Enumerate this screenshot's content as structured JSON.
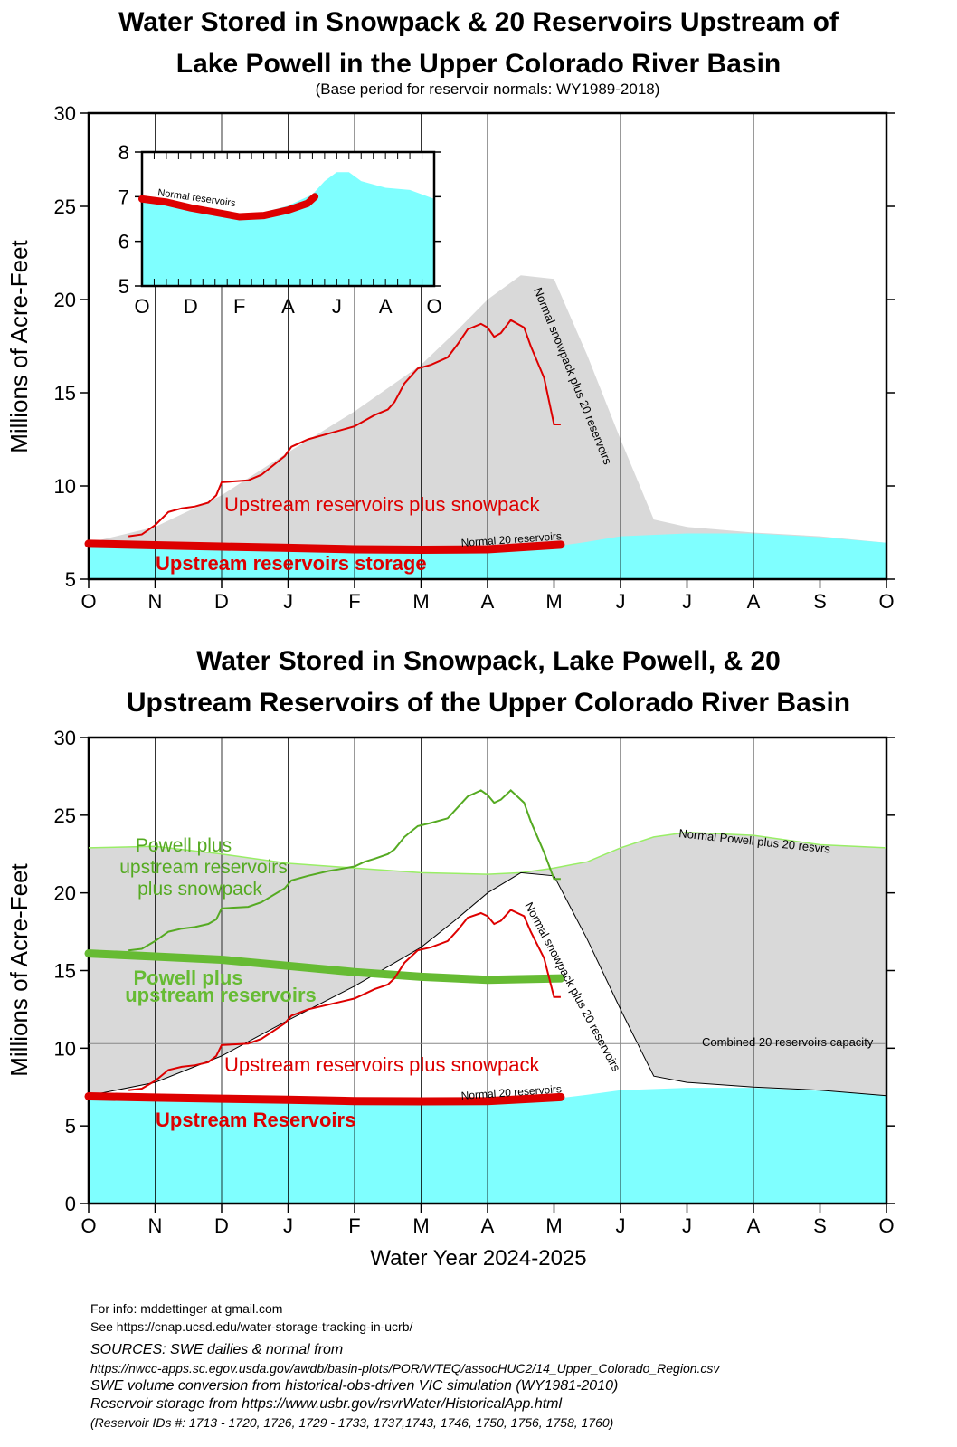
{
  "chart_data": [
    {
      "type": "area",
      "title": "Water Stored in Snowpack & 20 Reservoirs Upstream of Lake Powell in the Upper Colorado River Basin",
      "subtitle": "(Base period for reservoir normals: WY1989-2018)",
      "ylabel": "Millions of Acre-Feet",
      "xlabel": "",
      "ylim": [
        5,
        30
      ],
      "yticks": [
        5,
        10,
        15,
        20,
        25,
        30
      ],
      "xlim": [
        0,
        12
      ],
      "xticks": [
        "O",
        "N",
        "D",
        "J",
        "F",
        "M",
        "A",
        "M",
        "J",
        "J",
        "A",
        "S",
        "O"
      ],
      "grid": "vertical lines at month ticks",
      "series": [
        {
          "name": "Normal snowpack plus 20 reservoirs",
          "style": "gray fill",
          "color": "#d9d9d9",
          "x": [
            0,
            1,
            2,
            3,
            4,
            5,
            5.5,
            6,
            6.5,
            7,
            7.5,
            8,
            8.5,
            9,
            10,
            11,
            12
          ],
          "values": [
            6.95,
            7.8,
            9.5,
            11.8,
            14.0,
            16.5,
            18.2,
            20.0,
            21.3,
            21.1,
            17.0,
            12.5,
            8.2,
            7.8,
            7.5,
            7.3,
            6.95
          ]
        },
        {
          "name": "Normal 20 reservoirs",
          "style": "cyan fill",
          "color": "#7fffff",
          "x": [
            0,
            1,
            2,
            3,
            4,
            5,
            6,
            7,
            7.5,
            8,
            9,
            10,
            11,
            12
          ],
          "values": [
            6.9,
            6.85,
            6.75,
            6.62,
            6.55,
            6.5,
            6.55,
            6.75,
            7.0,
            7.3,
            7.45,
            7.45,
            7.25,
            6.95
          ]
        },
        {
          "name": "Upstream reservoirs plus snowpack",
          "style": "red line",
          "color": "#dd0000",
          "x": [
            0.6,
            0.8,
            1.0,
            1.2,
            1.4,
            1.6,
            1.8,
            1.92,
            2.0,
            2.4,
            2.6,
            2.95,
            3.05,
            3.3,
            3.6,
            4.0,
            4.15,
            4.3,
            4.5,
            4.6,
            4.75,
            4.95,
            5.15,
            5.4,
            5.55,
            5.7,
            5.9,
            6.0,
            6.1,
            6.2,
            6.35,
            6.55,
            6.65,
            6.85,
            7.0,
            7.1
          ],
          "values": [
            7.3,
            7.4,
            7.9,
            8.6,
            8.8,
            8.9,
            9.1,
            9.5,
            10.2,
            10.3,
            10.6,
            11.6,
            12.1,
            12.5,
            12.8,
            13.2,
            13.5,
            13.8,
            14.1,
            14.5,
            15.5,
            16.3,
            16.5,
            16.9,
            17.6,
            18.4,
            18.7,
            18.5,
            18.0,
            18.2,
            18.9,
            18.5,
            17.5,
            15.8,
            13.3,
            13.3
          ]
        },
        {
          "name": "Upstream reservoirs storage",
          "style": "thick red line",
          "color": "#dd0000",
          "x": [
            0,
            1,
            2,
            3,
            4,
            5,
            6,
            7.1
          ],
          "values": [
            6.9,
            6.82,
            6.75,
            6.68,
            6.6,
            6.58,
            6.6,
            6.85
          ]
        }
      ],
      "inset": {
        "ylim": [
          5,
          8
        ],
        "yticks": [
          5,
          6,
          7,
          8
        ],
        "xticks": [
          "O",
          "D",
          "F",
          "A",
          "J",
          "A",
          "O"
        ],
        "x": [
          0,
          1,
          2,
          3,
          4,
          5,
          6,
          7,
          7.5,
          8,
          8.5,
          9,
          10,
          11,
          12
        ],
        "normal_values": [
          6.95,
          6.9,
          6.75,
          6.6,
          6.58,
          6.65,
          6.8,
          7.05,
          7.35,
          7.55,
          7.55,
          7.35,
          7.2,
          7.15,
          6.95
        ],
        "storage_x": [
          0,
          1,
          2,
          3,
          4,
          5,
          6,
          6.8,
          7.1
        ],
        "storage_values": [
          6.95,
          6.88,
          6.75,
          6.65,
          6.55,
          6.58,
          6.7,
          6.85,
          7.0
        ],
        "label": "Normal reservoirs"
      },
      "annotations": [
        {
          "text": "Normal snowpack plus 20 reservoirs"
        },
        {
          "text": "Normal 20 reservoirs"
        },
        {
          "text": "Upstream reservoirs plus snowpack",
          "color": "#dd0000"
        },
        {
          "text": "Upstream reservoirs storage",
          "color": "#dd0000"
        }
      ]
    },
    {
      "type": "area",
      "title": "Water Stored in Snowpack, Lake Powell, & 20 Upstream Reservoirs of the Upper Colorado River Basin",
      "ylabel": "Millions of Acre-Feet",
      "xlabel": "Water Year 2024-2025",
      "ylim": [
        0,
        30
      ],
      "yticks": [
        0,
        5,
        10,
        15,
        20,
        25,
        30
      ],
      "xlim": [
        0,
        12
      ],
      "xticks": [
        "O",
        "N",
        "D",
        "J",
        "F",
        "M",
        "A",
        "M",
        "J",
        "J",
        "A",
        "S",
        "O"
      ],
      "grid": "vertical lines at month ticks",
      "series": [
        {
          "name": "Normal Powell plus 20 resvrs",
          "style": "gray fill, light green outline",
          "color": "#d9d9d9",
          "x": [
            0,
            1,
            2,
            3,
            4,
            5,
            6,
            6.5,
            7,
            7.5,
            8,
            8.5,
            9,
            10,
            11,
            12
          ],
          "values": [
            22.9,
            23.0,
            22.5,
            21.9,
            21.6,
            21.3,
            21.2,
            21.3,
            21.6,
            22.0,
            22.9,
            23.6,
            23.9,
            23.7,
            23.1,
            22.9
          ]
        },
        {
          "name": "Normal snowpack plus 20 reservoirs",
          "style": "white fill, black outline",
          "color": "#ffffff",
          "x": [
            0,
            1,
            2,
            3,
            4,
            5,
            5.5,
            6,
            6.5,
            7,
            7.5,
            8,
            8.5,
            9,
            10,
            11,
            12
          ],
          "values": [
            6.95,
            7.8,
            9.5,
            11.8,
            14.0,
            16.5,
            18.2,
            20.0,
            21.3,
            21.1,
            17.0,
            12.5,
            8.2,
            7.8,
            7.5,
            7.3,
            6.95
          ]
        },
        {
          "name": "Normal 20 reservoirs",
          "style": "cyan fill",
          "color": "#7fffff",
          "x": [
            0,
            1,
            2,
            3,
            4,
            5,
            6,
            7,
            7.5,
            8,
            9,
            10,
            11,
            12
          ],
          "values": [
            6.9,
            6.85,
            6.75,
            6.62,
            6.55,
            6.5,
            6.55,
            6.75,
            7.0,
            7.3,
            7.45,
            7.45,
            7.25,
            6.95
          ]
        },
        {
          "name": "Combined 20 reservoirs capacity",
          "style": "thin gray line",
          "color": "#888888",
          "x": [
            0,
            12
          ],
          "values": [
            10.3,
            10.3
          ]
        },
        {
          "name": "Powell plus upstream reservoirs plus snowpack",
          "style": "green line",
          "color": "#55aa22",
          "x": [
            0.6,
            0.8,
            1.0,
            1.2,
            1.4,
            1.6,
            1.8,
            1.92,
            2.0,
            2.4,
            2.6,
            2.95,
            3.05,
            3.3,
            3.6,
            4.0,
            4.15,
            4.3,
            4.5,
            4.6,
            4.75,
            4.95,
            5.15,
            5.4,
            5.55,
            5.7,
            5.9,
            6.0,
            6.1,
            6.2,
            6.35,
            6.55,
            6.65,
            6.85,
            7.0,
            7.1
          ],
          "values": [
            16.3,
            16.4,
            16.9,
            17.5,
            17.7,
            17.8,
            18.0,
            18.3,
            19.0,
            19.1,
            19.4,
            20.3,
            20.8,
            21.1,
            21.4,
            21.7,
            22.0,
            22.2,
            22.5,
            22.8,
            23.6,
            24.3,
            24.5,
            24.8,
            25.5,
            26.2,
            26.6,
            26.3,
            25.8,
            26.0,
            26.6,
            25.8,
            24.6,
            22.6,
            20.9,
            20.9
          ]
        },
        {
          "name": "Powell plus upstream reservoirs",
          "style": "thick green line",
          "color": "#66bb33",
          "x": [
            0,
            1,
            2,
            3,
            4,
            5,
            6,
            7.1
          ],
          "values": [
            16.1,
            15.9,
            15.7,
            15.3,
            14.9,
            14.6,
            14.4,
            14.5
          ]
        },
        {
          "name": "Upstream reservoirs plus snowpack",
          "style": "red line",
          "color": "#dd0000",
          "x": [
            0.6,
            0.8,
            1.0,
            1.2,
            1.4,
            1.6,
            1.8,
            1.92,
            2.0,
            2.4,
            2.6,
            2.95,
            3.05,
            3.3,
            3.6,
            4.0,
            4.15,
            4.3,
            4.5,
            4.6,
            4.75,
            4.95,
            5.15,
            5.4,
            5.55,
            5.7,
            5.9,
            6.0,
            6.1,
            6.2,
            6.35,
            6.55,
            6.65,
            6.85,
            7.0,
            7.1
          ],
          "values": [
            7.3,
            7.4,
            7.9,
            8.6,
            8.8,
            8.9,
            9.1,
            9.5,
            10.2,
            10.3,
            10.6,
            11.6,
            12.1,
            12.5,
            12.8,
            13.2,
            13.5,
            13.8,
            14.1,
            14.5,
            15.5,
            16.3,
            16.5,
            16.9,
            17.6,
            18.4,
            18.7,
            18.5,
            18.0,
            18.2,
            18.9,
            18.5,
            17.5,
            15.8,
            13.3,
            13.3
          ]
        },
        {
          "name": "Upstream Reservoirs",
          "style": "thick red line",
          "color": "#dd0000",
          "x": [
            0,
            1,
            2,
            3,
            4,
            5,
            6,
            7.1
          ],
          "values": [
            6.9,
            6.82,
            6.75,
            6.68,
            6.6,
            6.58,
            6.6,
            6.85
          ]
        }
      ],
      "annotations": [
        {
          "text": "Normal Powell plus 20 resvrs"
        },
        {
          "text": "Normal snowpack plus 20 reservoirs"
        },
        {
          "text": "Combined 20 reservoirs capacity"
        },
        {
          "text": "Normal 20 reservoirs"
        },
        {
          "text": "Powell plus",
          "color": "#55aa22"
        },
        {
          "text": "upstream reservoirs",
          "color": "#55aa22"
        },
        {
          "text": "plus snowpack",
          "color": "#55aa22"
        },
        {
          "text": "Powell plus",
          "color": "#66bb33"
        },
        {
          "text": "upstream reservoirs",
          "color": "#66bb33"
        },
        {
          "text": "Upstream reservoirs plus snowpack",
          "color": "#dd0000"
        },
        {
          "text": "Upstream Reservoirs",
          "color": "#dd0000"
        }
      ]
    }
  ],
  "footer": {
    "info": "For info: mddettinger at gmail.com",
    "see": "See https://cnap.ucsd.edu/water-storage-tracking-in-ucrb/",
    "sources": "SOURCES: SWE dailies & normal from",
    "swe_url": "https://nwcc-apps.sc.egov.usda.gov/awdb/basin-plots/POR/WTEQ/assocHUC2/14_Upper_Colorado_Region.csv",
    "swe_conversion": "SWE volume conversion from historical-obs-driven VIC simulation (WY1981-2010)",
    "reservoir_source": "Reservoir storage from https://www.usbr.gov/rsvrWater/HistoricalApp.html",
    "reservoir_ids": "(Reservoir IDs #: 1713 - 1720, 1726, 1729 - 1733, 1737,1743, 1746, 1750, 1756, 1758, 1760)"
  }
}
